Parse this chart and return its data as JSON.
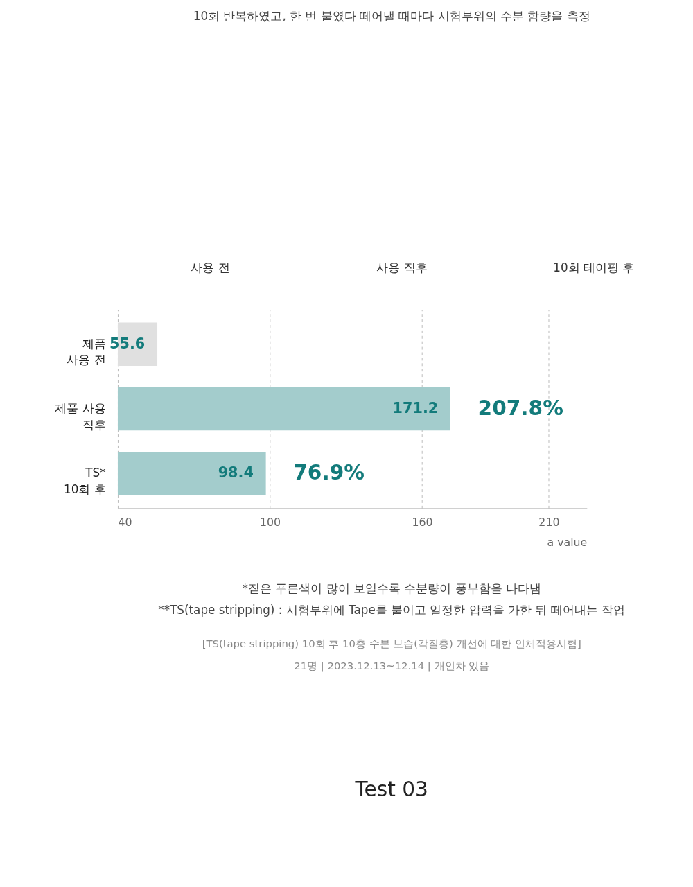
{
  "chart_data": {
    "type": "bar",
    "orientation": "horizontal",
    "subtitle": "10회 반복하였고, 한 번 붙였다 떼어낼 때마다 시험부위의 수분 함량을 측정",
    "categories": [
      "제품\n사용 전",
      "제품 사용\n직후",
      "TS*\n10회 후"
    ],
    "values": [
      55.6,
      171.2,
      98.4
    ],
    "colors": [
      "#e0e0e0",
      "#a3cccc",
      "#a3cccc"
    ],
    "data_labels": true,
    "xlabel": "a value",
    "xlim": [
      40,
      225
    ],
    "xticks": [
      40,
      100,
      160,
      210
    ],
    "grid": "x",
    "annotations": [
      "사용 전",
      "사용 직후",
      "10회 테이핑 후",
      "207.8%",
      "76.9%",
      "*짙은 푸른색이 많이 보일수록 수분량이 풍부함을 나타냄",
      "**TS(tape stripping) : 시험부위에 Tape를 붙이고 일정한 압력을 가한 뒤 떼어내는 작업",
      "[TS(tape stripping) 10회 후 10층 수분 보습(각질층) 개선에 대한 인체적용시험]",
      "21명  |  2023.12.13~12.14  |  개인차 있음",
      "Test 03"
    ]
  }
}
